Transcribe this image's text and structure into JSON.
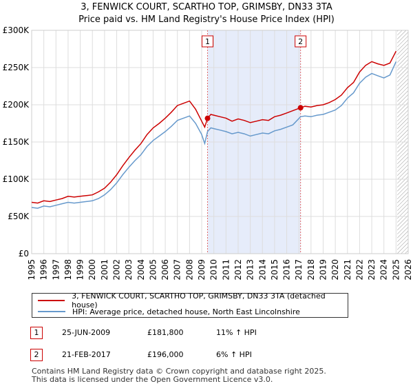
{
  "title": {
    "line1": "3, FENWICK COURT, SCARTHO TOP, GRIMSBY, DN33 3TA",
    "line2": "Price paid vs. HM Land Registry's House Price Index (HPI)"
  },
  "chart_data": {
    "type": "line",
    "title": "3, FENWICK COURT, SCARTHO TOP, GRIMSBY, DN33 3TA — Price paid vs. HM Land Registry's House Price Index (HPI)",
    "xlabel": "",
    "ylabel": "",
    "xlim": [
      1995,
      2026
    ],
    "ylim": [
      0,
      300000
    ],
    "y_ticks": [
      {
        "value": 0,
        "label": "£0"
      },
      {
        "value": 50000,
        "label": "£50K"
      },
      {
        "value": 100000,
        "label": "£100K"
      },
      {
        "value": 150000,
        "label": "£150K"
      },
      {
        "value": 200000,
        "label": "£200K"
      },
      {
        "value": 250000,
        "label": "£250K"
      },
      {
        "value": 300000,
        "label": "£300K"
      }
    ],
    "x_ticks": [
      "1995",
      "1996",
      "1997",
      "1998",
      "1999",
      "2000",
      "2001",
      "2002",
      "2003",
      "2004",
      "2005",
      "2006",
      "2007",
      "2008",
      "2009",
      "2010",
      "2011",
      "2012",
      "2013",
      "2014",
      "2015",
      "2016",
      "2017",
      "2018",
      "2019",
      "2020",
      "2021",
      "2022",
      "2023",
      "2024",
      "2025",
      "2026"
    ],
    "grid": true,
    "shaded_region": [
      2009.48,
      2017.14
    ],
    "future_hatch_from": 2025.1,
    "series": [
      {
        "name": "3, FENWICK COURT, SCARTHO TOP, GRIMSBY, DN33 3TA (detached house)",
        "color": "#cc0000",
        "x": [
          1995.0,
          1995.5,
          1996.0,
          1996.5,
          1997.0,
          1997.5,
          1998.0,
          1998.5,
          1999.0,
          1999.5,
          2000.0,
          2000.5,
          2001.0,
          2001.5,
          2002.0,
          2002.5,
          2003.0,
          2003.5,
          2004.0,
          2004.5,
          2005.0,
          2005.5,
          2006.0,
          2006.5,
          2007.0,
          2007.5,
          2008.0,
          2008.5,
          2009.0,
          2009.25,
          2009.48,
          2009.75,
          2010.0,
          2010.5,
          2011.0,
          2011.5,
          2012.0,
          2012.5,
          2013.0,
          2013.5,
          2014.0,
          2014.5,
          2015.0,
          2015.5,
          2016.0,
          2016.5,
          2017.14,
          2017.5,
          2018.0,
          2018.5,
          2019.0,
          2019.5,
          2020.0,
          2020.5,
          2021.0,
          2021.5,
          2022.0,
          2022.5,
          2023.0,
          2023.5,
          2024.0,
          2024.5,
          2025.0
        ],
        "values": [
          69000,
          68000,
          71000,
          70000,
          72000,
          74000,
          77000,
          76000,
          77000,
          78000,
          79000,
          83000,
          88000,
          96000,
          106000,
          118000,
          129000,
          139000,
          148000,
          160000,
          169000,
          175000,
          182000,
          190000,
          199000,
          202000,
          205000,
          194000,
          178000,
          170000,
          181800,
          187000,
          186000,
          184000,
          182000,
          178000,
          181000,
          179000,
          176000,
          178000,
          180000,
          179000,
          184000,
          186000,
          189000,
          192000,
          196000,
          198000,
          197000,
          199000,
          200000,
          203000,
          207000,
          213000,
          223000,
          230000,
          244000,
          253000,
          258000,
          255000,
          253000,
          256000,
          272000
        ]
      },
      {
        "name": "HPI: Average price, detached house, North East Lincolnshire",
        "color": "#6699cc",
        "x": [
          1995.0,
          1995.5,
          1996.0,
          1996.5,
          1997.0,
          1997.5,
          1998.0,
          1998.5,
          1999.0,
          1999.5,
          2000.0,
          2000.5,
          2001.0,
          2001.5,
          2002.0,
          2002.5,
          2003.0,
          2003.5,
          2004.0,
          2004.5,
          2005.0,
          2005.5,
          2006.0,
          2006.5,
          2007.0,
          2007.5,
          2008.0,
          2008.5,
          2009.0,
          2009.25,
          2009.48,
          2009.75,
          2010.0,
          2010.5,
          2011.0,
          2011.5,
          2012.0,
          2012.5,
          2013.0,
          2013.5,
          2014.0,
          2014.5,
          2015.0,
          2015.5,
          2016.0,
          2016.5,
          2017.14,
          2017.5,
          2018.0,
          2018.5,
          2019.0,
          2019.5,
          2020.0,
          2020.5,
          2021.0,
          2021.5,
          2022.0,
          2022.5,
          2023.0,
          2023.5,
          2024.0,
          2024.5,
          2025.0
        ],
        "values": [
          62000,
          61000,
          64000,
          63000,
          65000,
          67000,
          69000,
          68000,
          69000,
          70000,
          71000,
          74000,
          79000,
          86000,
          95000,
          106000,
          116000,
          125000,
          133000,
          144000,
          152000,
          158000,
          164000,
          171000,
          179000,
          182000,
          185000,
          175000,
          160000,
          148000,
          164000,
          169000,
          168000,
          166000,
          164000,
          161000,
          163000,
          161000,
          158000,
          160000,
          162000,
          161000,
          165000,
          167000,
          170000,
          173000,
          184000,
          185000,
          184000,
          186000,
          187000,
          190000,
          193000,
          199000,
          209000,
          216000,
          229000,
          237000,
          242000,
          239000,
          236000,
          240000,
          258000
        ]
      }
    ],
    "markers": [
      {
        "label": "1",
        "x": 2009.48,
        "value": 181800
      },
      {
        "label": "2",
        "x": 2017.14,
        "value": 196000
      }
    ]
  },
  "legend": {
    "property": "3, FENWICK COURT, SCARTHO TOP, GRIMSBY, DN33 3TA (detached house)",
    "hpi": "HPI: Average price, detached house, North East Lincolnshire"
  },
  "transactions": [
    {
      "badge": "1",
      "date": "25-JUN-2009",
      "price": "£181,800",
      "hpi": "11% ↑ HPI"
    },
    {
      "badge": "2",
      "date": "21-FEB-2017",
      "price": "£196,000",
      "hpi": "6% ↑ HPI"
    }
  ],
  "footer": {
    "line1": "Contains HM Land Registry data © Crown copyright and database right 2025.",
    "line2": "This data is licensed under the Open Government Licence v3.0."
  }
}
